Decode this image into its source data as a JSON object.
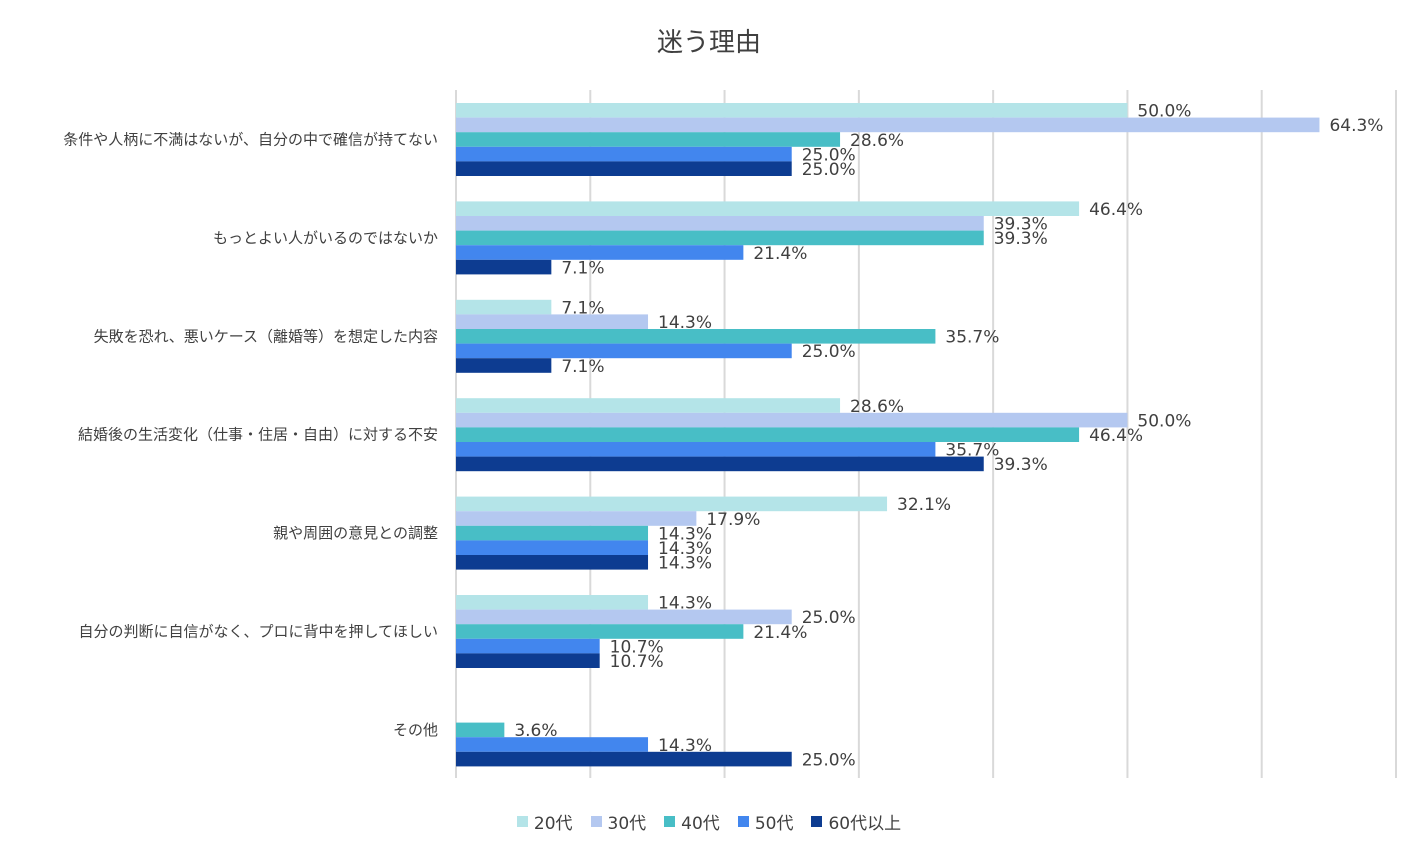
{
  "chart_data": {
    "type": "bar",
    "orientation": "horizontal",
    "title": "迷う理由",
    "categories": [
      "条件や人柄に不満はないが、自分の中で確信が持てない",
      "もっとよい人がいるのではないか",
      "失敗を恐れ、悪いケース（離婚等）を想定した内容",
      "結婚後の生活変化（仕事・住居・自由）に対する不安",
      "親や周囲の意見との調整",
      "自分の判断に自信がなく、プロに背中を押してほしい",
      "その他"
    ],
    "series": [
      {
        "name": "20代",
        "color": "#b4e4e8",
        "values": [
          50.0,
          46.4,
          7.1,
          28.6,
          32.1,
          14.3,
          0
        ]
      },
      {
        "name": "30代",
        "color": "#b4c8f0",
        "values": [
          64.3,
          39.3,
          14.3,
          50.0,
          17.9,
          25.0,
          0
        ]
      },
      {
        "name": "40代",
        "color": "#48bec6",
        "values": [
          28.6,
          39.3,
          35.7,
          46.4,
          14.3,
          21.4,
          3.6
        ]
      },
      {
        "name": "50代",
        "color": "#4286ee",
        "values": [
          25.0,
          21.4,
          25.0,
          35.7,
          14.3,
          10.7,
          14.3
        ]
      },
      {
        "name": "60代以上",
        "color": "#0d3c91",
        "values": [
          25.0,
          7.1,
          7.1,
          39.3,
          14.3,
          10.7,
          25.0
        ]
      }
    ],
    "xlim": [
      0,
      70
    ],
    "grid": true,
    "legend": "bottom",
    "value_format": "%.1f%"
  }
}
